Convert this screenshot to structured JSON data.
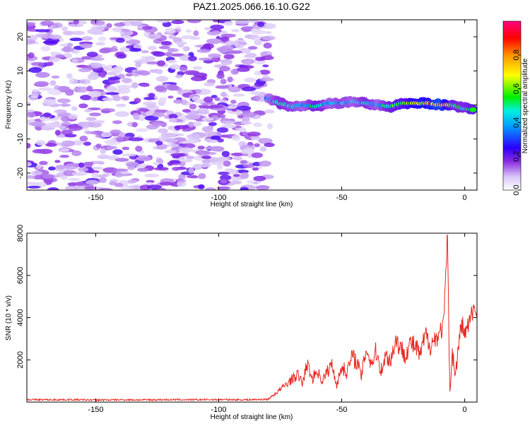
{
  "title": "PAZ1.2025.066.16.10.G22",
  "colors": {
    "snr_line": "#e8261e",
    "spectrogram_scale": [
      "#ffffff",
      "#e9d9fb",
      "#b88cf0",
      "#7a1fe8",
      "#2c00ff",
      "#0088ff",
      "#00e8e8",
      "#00f000",
      "#ffff00",
      "#ff9000",
      "#ff0000",
      "#ff0080"
    ]
  },
  "chart_data": [
    {
      "type": "heatmap",
      "title": "PAZ1.2025.066.16.10.G22",
      "xlabel": "Height of straight line (km)",
      "ylabel": "Frequency (Hz)",
      "xlim": [
        -178,
        5
      ],
      "ylim": [
        -25,
        25
      ],
      "xticks": [
        -150,
        -100,
        -50,
        0
      ],
      "xtick_labels": [
        "-150",
        "-100",
        "-50",
        "0"
      ],
      "yticks": [
        -20,
        -10,
        0,
        10,
        20
      ],
      "ytick_labels": [
        "-20",
        "-10",
        "0",
        "10",
        "20"
      ],
      "colorbar": {
        "label": "Normalized spectral amplitude",
        "range": [
          0,
          1
        ],
        "ticks": [
          0,
          0.2,
          0.4,
          0.6,
          0.8
        ],
        "tick_labels": [
          "0.0",
          "0.2",
          "0.4",
          "0.6",
          "0.8"
        ]
      },
      "noise_region_x": [
        -178,
        -79
      ],
      "ridge": [
        {
          "x": -80,
          "f": 2.0,
          "a": 0.35
        },
        {
          "x": -75,
          "f": 0.5,
          "a": 0.5
        },
        {
          "x": -70,
          "f": -0.5,
          "a": 0.45
        },
        {
          "x": -65,
          "f": 0.0,
          "a": 0.4
        },
        {
          "x": -60,
          "f": -0.5,
          "a": 0.55
        },
        {
          "x": -55,
          "f": 0.5,
          "a": 0.4
        },
        {
          "x": -50,
          "f": 0.5,
          "a": 0.45
        },
        {
          "x": -45,
          "f": 1.0,
          "a": 0.4
        },
        {
          "x": -40,
          "f": 0.5,
          "a": 0.5
        },
        {
          "x": -35,
          "f": 0.0,
          "a": 0.4
        },
        {
          "x": -30,
          "f": -0.5,
          "a": 0.55
        },
        {
          "x": -25,
          "f": 0.5,
          "a": 0.6
        },
        {
          "x": -20,
          "f": 0.5,
          "a": 0.75
        },
        {
          "x": -15,
          "f": 0.5,
          "a": 0.75
        },
        {
          "x": -10,
          "f": 0.0,
          "a": 0.9
        },
        {
          "x": -5,
          "f": 0.0,
          "a": 0.55
        },
        {
          "x": 0,
          "f": -1.0,
          "a": 0.5
        },
        {
          "x": 4,
          "f": -1.5,
          "a": 0.6
        }
      ]
    },
    {
      "type": "line",
      "xlabel": "Height of straight line (km)",
      "ylabel": "SNR (10 * v/v)",
      "xlim": [
        -178,
        5
      ],
      "ylim": [
        0,
        8000
      ],
      "xticks": [
        -150,
        -100,
        -50,
        0
      ],
      "xtick_labels": [
        "-150",
        "-100",
        "-50",
        "0"
      ],
      "yticks": [
        2000,
        4000,
        6000,
        8000
      ],
      "ytick_labels": [
        "2000",
        "4000",
        "6000",
        "8000"
      ],
      "series": [
        {
          "x": [
            -178,
            -170,
            -160,
            -150,
            -140,
            -130,
            -120,
            -110,
            -100,
            -90,
            -80,
            -77,
            -74,
            -71,
            -68,
            -66,
            -64,
            -62,
            -60,
            -58,
            -56,
            -54,
            -52,
            -50,
            -48,
            -46,
            -44,
            -42,
            -40,
            -38,
            -36,
            -34,
            -32,
            -30,
            -28,
            -26,
            -24,
            -22,
            -20,
            -18,
            -16,
            -14,
            -12,
            -10,
            -8.5,
            -7,
            -6.5,
            -6,
            -5,
            -4,
            -3,
            -2,
            -1,
            0,
            2,
            4,
            5
          ],
          "y": [
            120,
            110,
            115,
            100,
            110,
            105,
            115,
            110,
            120,
            110,
            130,
            400,
            700,
            1000,
            1300,
            900,
            1800,
            1100,
            1500,
            1000,
            1400,
            1800,
            800,
            1700,
            1400,
            2100,
            2000,
            1200,
            2600,
            1800,
            2400,
            1500,
            2200,
            2000,
            3000,
            2500,
            2300,
            2800,
            2600,
            2200,
            3200,
            2700,
            3000,
            3300,
            3700,
            8000,
            3500,
            500,
            2400,
            1300,
            2000,
            3200,
            3700,
            3200,
            3800,
            4500,
            4300
          ]
        }
      ]
    }
  ]
}
